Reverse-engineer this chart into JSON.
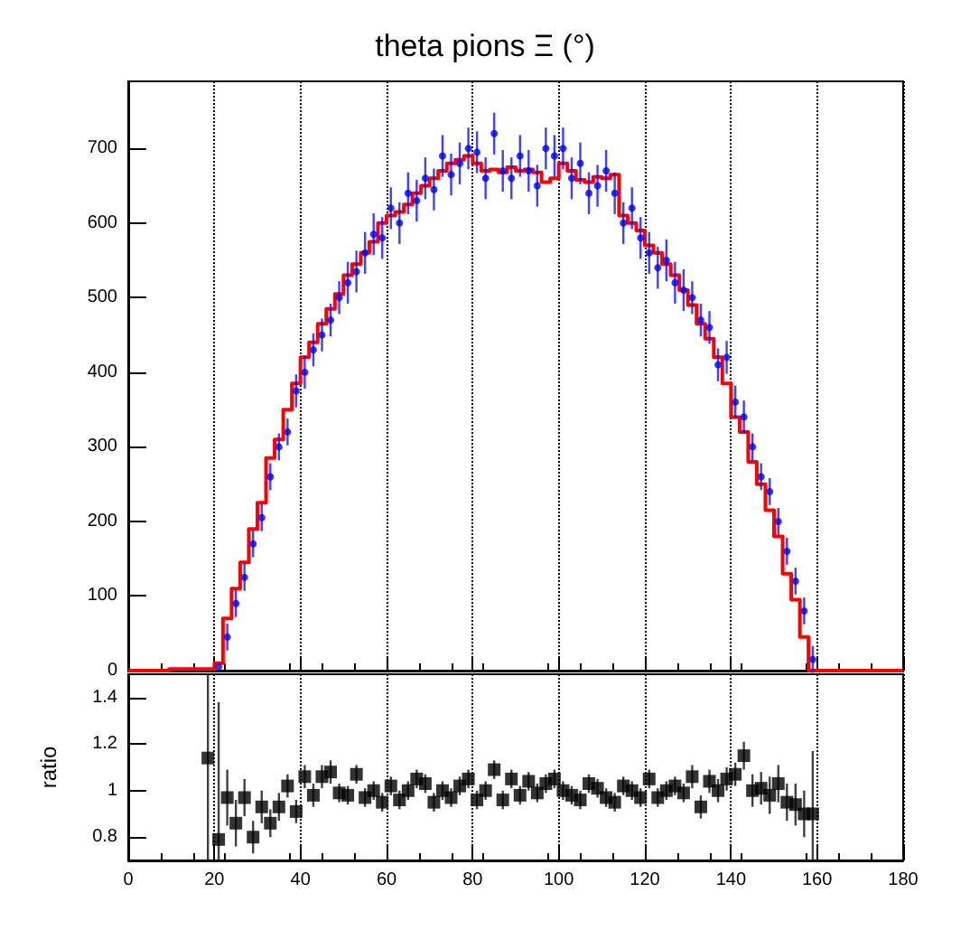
{
  "chart_data": [
    {
      "type": "scatter",
      "title": "theta pions Ξ (°)",
      "xlim": [
        0,
        180
      ],
      "xticks": [
        0,
        20,
        40,
        60,
        80,
        100,
        120,
        140,
        160,
        180
      ],
      "ylim": [
        0,
        790
      ],
      "yticks": [
        0,
        100,
        200,
        300,
        400,
        500,
        600,
        700
      ],
      "grid": "x",
      "tick_labels": "y",
      "series": [
        {
          "type": "scatter",
          "marker": "circle",
          "color": "#0000ff",
          "x": [
            21,
            23,
            25,
            27,
            29,
            31,
            33,
            35,
            37,
            39,
            41,
            43,
            45,
            47,
            49,
            51,
            53,
            55,
            57,
            59,
            61,
            63,
            65,
            67,
            69,
            71,
            73,
            75,
            77,
            79,
            81,
            83,
            85,
            87,
            89,
            91,
            93,
            95,
            97,
            99,
            101,
            103,
            105,
            107,
            109,
            111,
            113,
            115,
            117,
            119,
            121,
            123,
            125,
            127,
            129,
            131,
            133,
            135,
            137,
            139,
            141,
            143,
            145,
            147,
            149,
            151,
            153,
            155,
            157,
            159
          ],
          "values": [
            5,
            45,
            90,
            125,
            170,
            205,
            260,
            300,
            320,
            375,
            400,
            430,
            450,
            470,
            500,
            520,
            535,
            560,
            585,
            580,
            620,
            600,
            640,
            630,
            660,
            645,
            690,
            665,
            680,
            700,
            695,
            660,
            720,
            670,
            660,
            690,
            670,
            650,
            700,
            690,
            700,
            660,
            680,
            640,
            650,
            670,
            640,
            600,
            620,
            580,
            560,
            540,
            550,
            520,
            510,
            500,
            470,
            460,
            410,
            420,
            360,
            340,
            300,
            260,
            240,
            200,
            160,
            120,
            80,
            15
          ],
          "errors": [
            null,
            18,
            18,
            18,
            18,
            18,
            18,
            18,
            18,
            22,
            22,
            22,
            22,
            22,
            22,
            28,
            28,
            28,
            28,
            28,
            28,
            28,
            28,
            28,
            28,
            28,
            28,
            28,
            28,
            28,
            28,
            28,
            28,
            28,
            28,
            28,
            28,
            28,
            28,
            28,
            28,
            28,
            28,
            28,
            28,
            28,
            28,
            28,
            28,
            28,
            28,
            28,
            28,
            28,
            28,
            22,
            22,
            22,
            22,
            22,
            22,
            22,
            18,
            18,
            18,
            18,
            18,
            18,
            18,
            18
          ]
        },
        {
          "type": "step",
          "color": "#ff0000",
          "x": [
            0,
            19,
            21,
            23,
            25,
            27,
            29,
            31,
            33,
            35,
            37,
            39,
            41,
            43,
            45,
            47,
            49,
            51,
            53,
            55,
            57,
            59,
            61,
            63,
            65,
            67,
            69,
            71,
            73,
            75,
            77,
            79,
            81,
            83,
            85,
            87,
            89,
            91,
            93,
            95,
            97,
            99,
            101,
            103,
            105,
            107,
            109,
            111,
            113,
            115,
            117,
            119,
            121,
            123,
            125,
            127,
            129,
            131,
            133,
            135,
            137,
            139,
            141,
            143,
            145,
            147,
            149,
            151,
            153,
            155,
            157,
            159,
            180
          ],
          "values": [
            0,
            2,
            10,
            70,
            110,
            145,
            190,
            225,
            285,
            310,
            350,
            385,
            420,
            440,
            465,
            485,
            505,
            530,
            545,
            560,
            575,
            600,
            610,
            615,
            625,
            640,
            650,
            660,
            670,
            680,
            685,
            690,
            680,
            670,
            672,
            668,
            675,
            670,
            672,
            668,
            655,
            660,
            680,
            670,
            658,
            655,
            662,
            660,
            665,
            610,
            600,
            590,
            570,
            560,
            545,
            530,
            510,
            490,
            465,
            445,
            420,
            385,
            340,
            320,
            280,
            250,
            215,
            180,
            130,
            95,
            45,
            0,
            0
          ]
        }
      ]
    },
    {
      "type": "scatter",
      "ylabel": "ratio",
      "xlim": [
        0,
        180
      ],
      "xticks": [
        0,
        20,
        40,
        60,
        80,
        100,
        120,
        140,
        160,
        180
      ],
      "ylim": [
        0.7,
        1.5
      ],
      "yticks": [
        {
          "value": 0.8,
          "label": "0.8"
        },
        1,
        {
          "value": 1.2,
          "label": "1.2"
        },
        {
          "value": 1.4,
          "label": "1.4"
        }
      ],
      "grid": "x",
      "marker": "square",
      "series": [
        {
          "color": "#000000",
          "x": [
            18.5,
            21,
            23,
            25,
            27,
            29,
            31,
            33,
            35,
            37,
            39,
            41,
            43,
            45,
            47,
            49,
            51,
            53,
            55,
            57,
            59,
            61,
            63,
            65,
            67,
            69,
            71,
            73,
            75,
            77,
            79,
            81,
            83,
            85,
            87,
            89,
            91,
            93,
            95,
            97,
            99,
            101,
            103,
            105,
            107,
            109,
            111,
            113,
            115,
            117,
            119,
            121,
            123,
            125,
            127,
            129,
            131,
            133,
            135,
            137,
            139,
            141,
            143,
            145,
            147,
            149,
            151,
            153,
            155,
            157,
            159
          ],
          "values": [
            1.14,
            0.79,
            0.97,
            0.86,
            0.97,
            0.8,
            0.93,
            0.86,
            0.93,
            1.02,
            0.91,
            1.06,
            0.98,
            1.06,
            1.08,
            0.99,
            0.98,
            1.07,
            0.97,
            1,
            0.95,
            1.02,
            0.96,
            1,
            1.05,
            1.03,
            0.95,
            1,
            0.97,
            1.02,
            1.05,
            0.96,
            1,
            1.09,
            0.96,
            1.05,
            0.98,
            1.04,
            0.99,
            1.03,
            1.05,
            1,
            0.98,
            0.96,
            1.03,
            1.01,
            0.97,
            0.95,
            1.02,
            1,
            0.97,
            1.05,
            0.97,
            1,
            1.02,
            0.99,
            1.06,
            0.93,
            1.04,
            1,
            1.05,
            1.07,
            1.15,
            1,
            1.01,
            0.98,
            1.03,
            0.95,
            0.94,
            0.9,
            0.9
          ],
          "errors": [
            [
              0.7,
              1.5
            ],
            [
              0.7,
              1.38
            ],
            0.12,
            0.1,
            0.08,
            0.07,
            0.07,
            0.06,
            0.06,
            0.05,
            0.05,
            0.05,
            0.05,
            0.05,
            0.05,
            0.04,
            0.04,
            0.04,
            0.04,
            0.04,
            0.04,
            0.04,
            0.04,
            0.04,
            0.04,
            0.04,
            0.04,
            0.04,
            0.04,
            0.04,
            0.04,
            0.04,
            0.04,
            0.04,
            0.04,
            0.04,
            0.04,
            0.04,
            0.04,
            0.04,
            0.04,
            0.04,
            0.04,
            0.04,
            0.04,
            0.04,
            0.04,
            0.04,
            0.04,
            0.04,
            0.04,
            0.04,
            0.04,
            0.04,
            0.04,
            0.04,
            0.05,
            0.05,
            0.05,
            0.05,
            0.05,
            0.05,
            0.06,
            0.07,
            0.07,
            0.08,
            0.08,
            0.08,
            0.09,
            0.1,
            [
              0.7,
              1.17
            ]
          ]
        }
      ]
    }
  ]
}
